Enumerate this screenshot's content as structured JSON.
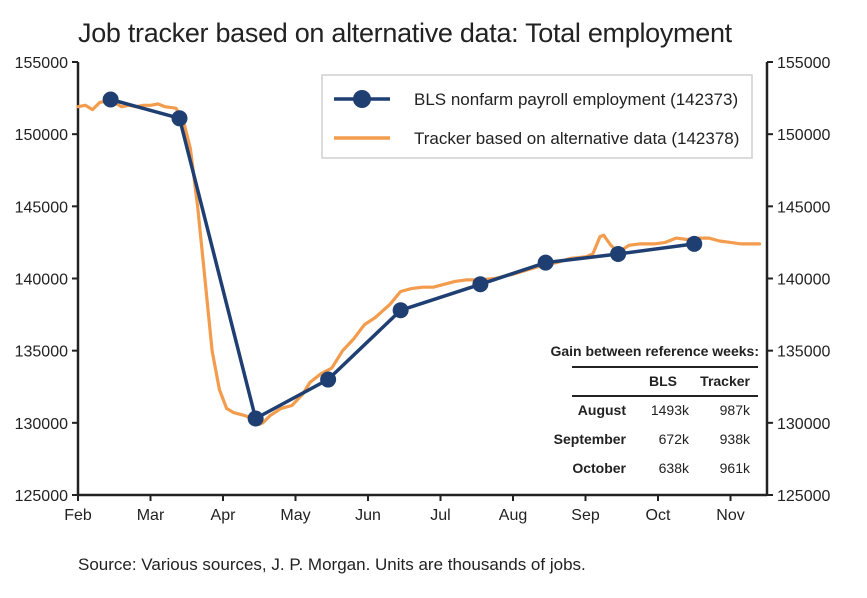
{
  "title": "Job tracker based on alternative data: Total employment",
  "source": "Source: Various sources, J. P. Morgan. Units are thousands of jobs.",
  "colors": {
    "bls": "#1f3f73",
    "tracker": "#f39c4d",
    "axis": "#222222"
  },
  "chart_data": {
    "type": "line",
    "title": "Job tracker based on alternative data: Total employment",
    "x_unit": "months since Feb 1",
    "ylim": [
      125000,
      155000
    ],
    "yticks": [
      125000,
      130000,
      135000,
      140000,
      145000,
      150000,
      155000
    ],
    "yticks_right": [
      "125000",
      "130000",
      "135000",
      "140000",
      "145000",
      "150000",
      "155000"
    ],
    "xticks": [
      "Feb",
      "Mar",
      "Apr",
      "May",
      "Jun",
      "Jul",
      "Aug",
      "Sep",
      "Oct",
      "Nov"
    ],
    "grid": false,
    "legend_position": "top-right",
    "series": [
      {
        "name": "BLS nonfarm payroll employment (142373)",
        "style": "line-markers",
        "points": [
          [
            0.45,
            152400
          ],
          [
            1.4,
            151100
          ],
          [
            2.45,
            130300
          ],
          [
            3.45,
            133000
          ],
          [
            4.45,
            137800
          ],
          [
            5.55,
            139600
          ],
          [
            6.45,
            141100
          ],
          [
            7.45,
            141700
          ],
          [
            8.5,
            142400
          ]
        ]
      },
      {
        "name": "Tracker based on alternative data (142378)",
        "style": "line",
        "points": [
          [
            0.0,
            151900
          ],
          [
            0.1,
            152000
          ],
          [
            0.2,
            151700
          ],
          [
            0.3,
            152200
          ],
          [
            0.4,
            152300
          ],
          [
            0.5,
            152200
          ],
          [
            0.6,
            151900
          ],
          [
            0.7,
            152000
          ],
          [
            0.8,
            151900
          ],
          [
            0.9,
            152000
          ],
          [
            1.0,
            152000
          ],
          [
            1.1,
            152100
          ],
          [
            1.2,
            151900
          ],
          [
            1.35,
            151800
          ],
          [
            1.45,
            151000
          ],
          [
            1.55,
            149000
          ],
          [
            1.65,
            145000
          ],
          [
            1.75,
            140000
          ],
          [
            1.85,
            135000
          ],
          [
            1.95,
            132300
          ],
          [
            2.05,
            131000
          ],
          [
            2.15,
            130700
          ],
          [
            2.3,
            130500
          ],
          [
            2.45,
            130200
          ],
          [
            2.5,
            129900
          ],
          [
            2.55,
            130000
          ],
          [
            2.65,
            130500
          ],
          [
            2.8,
            131000
          ],
          [
            2.95,
            131200
          ],
          [
            3.1,
            132000
          ],
          [
            3.2,
            132800
          ],
          [
            3.35,
            133400
          ],
          [
            3.5,
            133800
          ],
          [
            3.65,
            135000
          ],
          [
            3.8,
            135800
          ],
          [
            3.95,
            136800
          ],
          [
            4.1,
            137300
          ],
          [
            4.3,
            138200
          ],
          [
            4.45,
            139100
          ],
          [
            4.6,
            139300
          ],
          [
            4.75,
            139400
          ],
          [
            4.9,
            139400
          ],
          [
            5.05,
            139600
          ],
          [
            5.2,
            139800
          ],
          [
            5.35,
            139900
          ],
          [
            5.55,
            139900
          ],
          [
            5.75,
            140000
          ],
          [
            6.0,
            140300
          ],
          [
            6.2,
            140600
          ],
          [
            6.4,
            140900
          ],
          [
            6.6,
            141100
          ],
          [
            6.8,
            141400
          ],
          [
            7.0,
            141500
          ],
          [
            7.1,
            141700
          ],
          [
            7.2,
            142900
          ],
          [
            7.25,
            143000
          ],
          [
            7.35,
            142300
          ],
          [
            7.45,
            141800
          ],
          [
            7.6,
            142300
          ],
          [
            7.75,
            142400
          ],
          [
            7.95,
            142400
          ],
          [
            8.1,
            142500
          ],
          [
            8.25,
            142800
          ],
          [
            8.4,
            142700
          ],
          [
            8.55,
            142800
          ],
          [
            8.7,
            142800
          ],
          [
            8.85,
            142600
          ],
          [
            9.0,
            142500
          ],
          [
            9.15,
            142400
          ],
          [
            9.3,
            142400
          ],
          [
            9.4,
            142400
          ]
        ]
      }
    ],
    "gain_table": {
      "title": "Gain between reference weeks:",
      "headers": [
        "",
        "BLS",
        "Tracker"
      ],
      "rows": [
        [
          "August",
          "1493k",
          "987k"
        ],
        [
          "September",
          "672k",
          "938k"
        ],
        [
          "October",
          "638k",
          "961k"
        ]
      ]
    }
  }
}
